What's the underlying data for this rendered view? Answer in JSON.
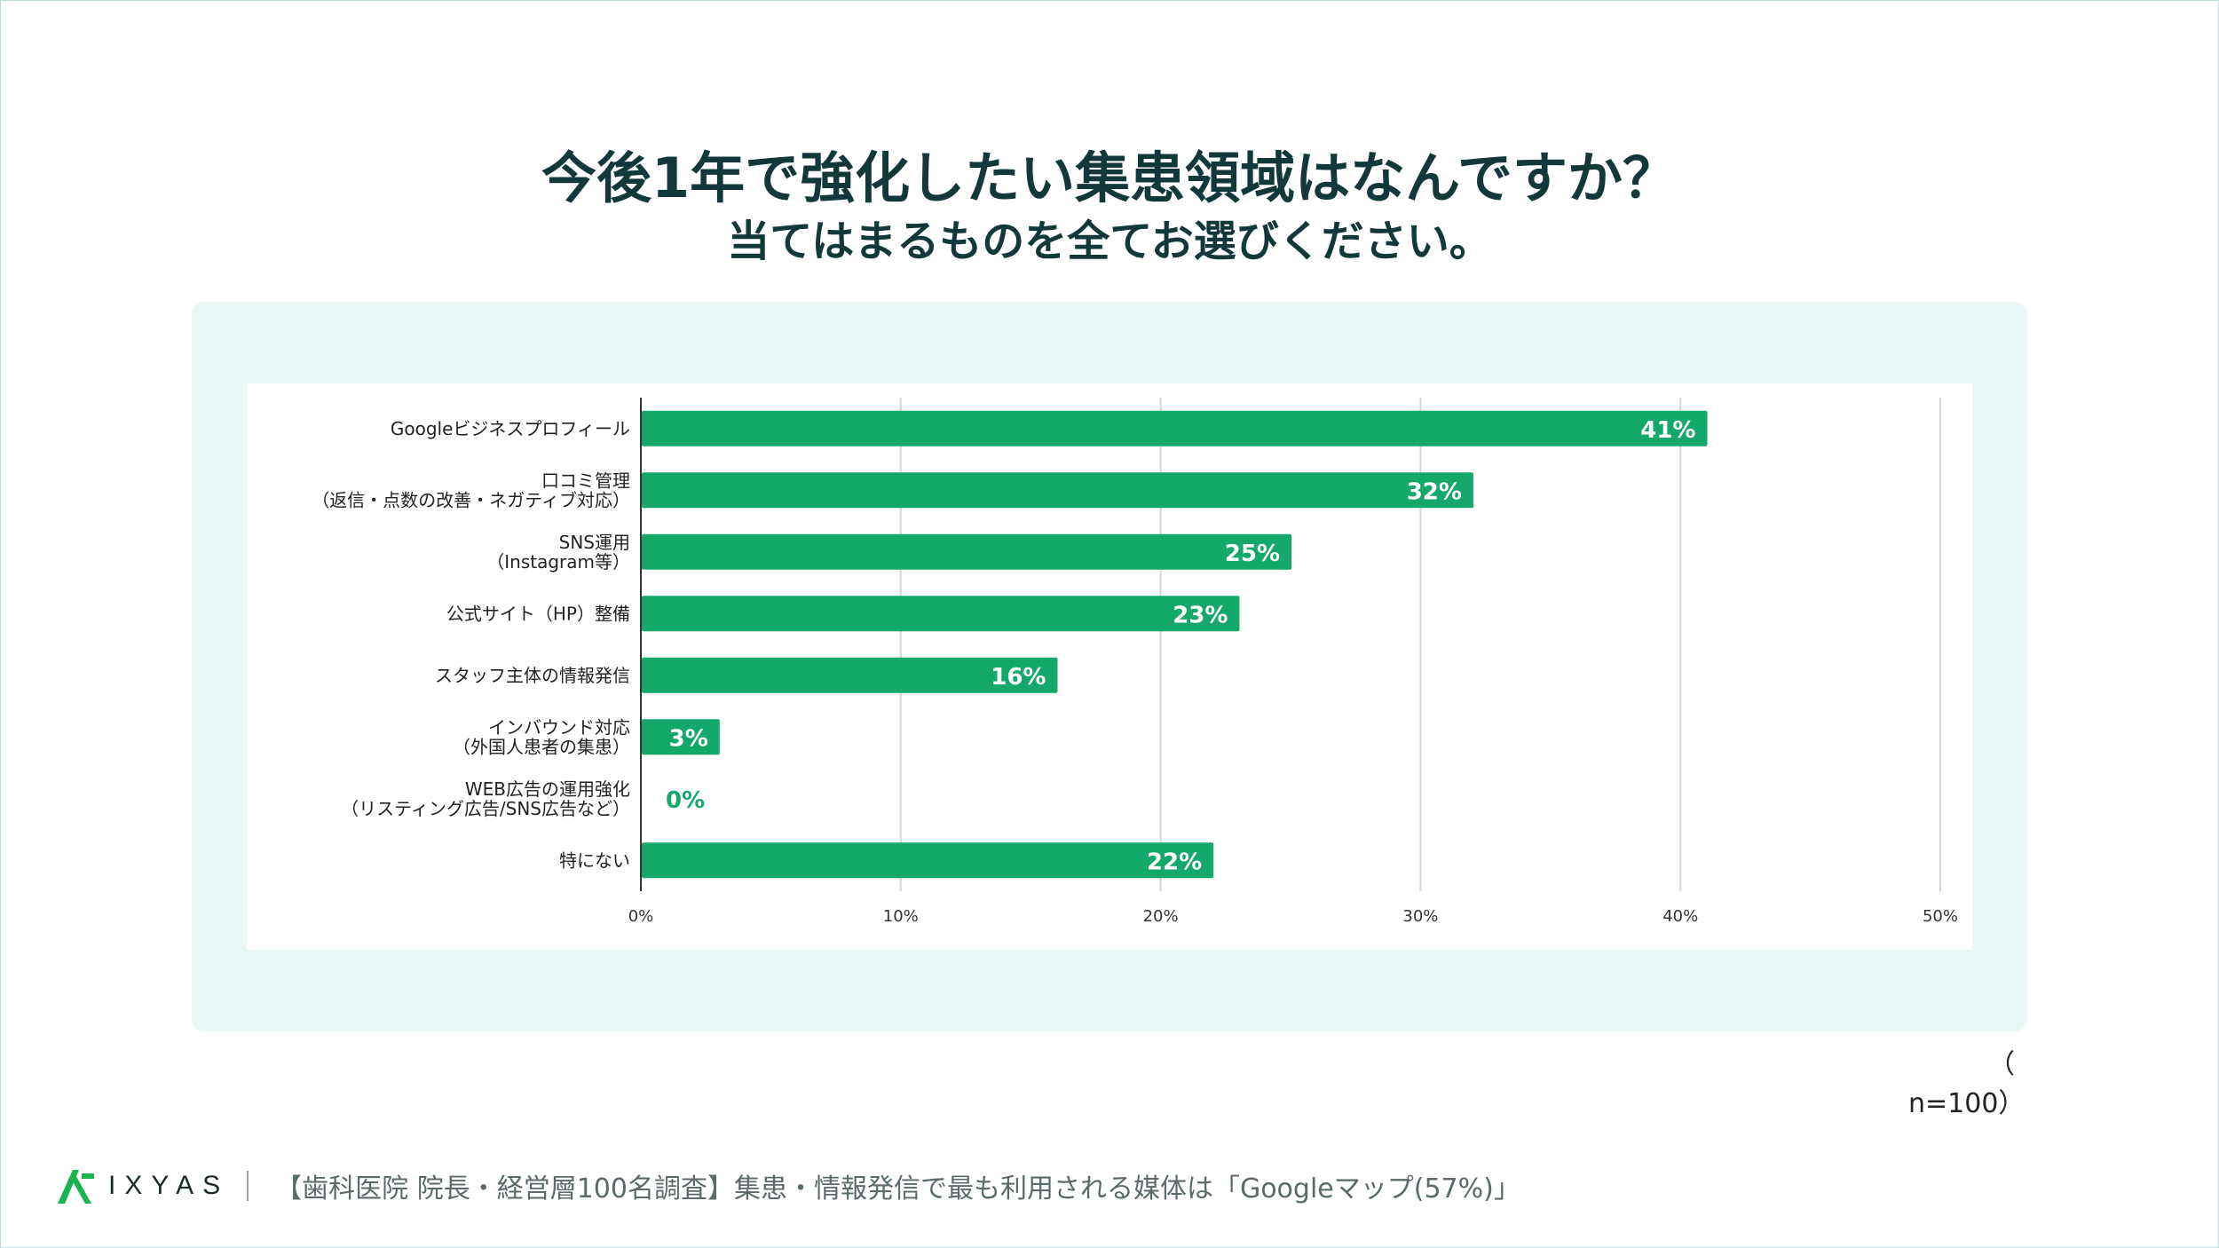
{
  "title": "今後1年で強化したい集患領域はなんですか？",
  "subtitle": "当てはまるものを全てお選びください。",
  "sample_note": "（ n=100）",
  "footer": {
    "brand": "IXYAS",
    "caption": "【歯科医院 院長・経営層100名調査】集患・情報発信で最も利用される媒体は「Googleマップ(57%)」"
  },
  "colors": {
    "bar": "#14a86b",
    "title": "#12383a",
    "grid": "#d6d6d6",
    "logo": "#19b44f"
  },
  "chart_data": {
    "type": "bar",
    "orientation": "horizontal",
    "categories": [
      [
        "Googleビジネスプロフィール"
      ],
      [
        "口コミ管理",
        "（返信・点数の改善・ネガティブ対応）"
      ],
      [
        "SNS運用",
        "（Instagram等）"
      ],
      [
        "公式サイト（HP）整備"
      ],
      [
        "スタッフ主体の情報発信"
      ],
      [
        "インバウンド対応",
        "（外国人患者の集患）"
      ],
      [
        "WEB広告の運用強化",
        "（リスティング広告/SNS広告など）"
      ],
      [
        "特にない"
      ]
    ],
    "values": [
      41,
      32,
      25,
      23,
      16,
      3,
      0,
      22
    ],
    "value_labels": [
      "41%",
      "32%",
      "25%",
      "23%",
      "16%",
      "3%",
      "0%",
      "22%"
    ],
    "xlim": [
      0,
      50
    ],
    "xticks": [
      0,
      10,
      20,
      30,
      40,
      50
    ],
    "xtick_labels": [
      "0%",
      "10%",
      "20%",
      "30%",
      "40%",
      "50%"
    ],
    "grid": true,
    "legend": "none"
  }
}
